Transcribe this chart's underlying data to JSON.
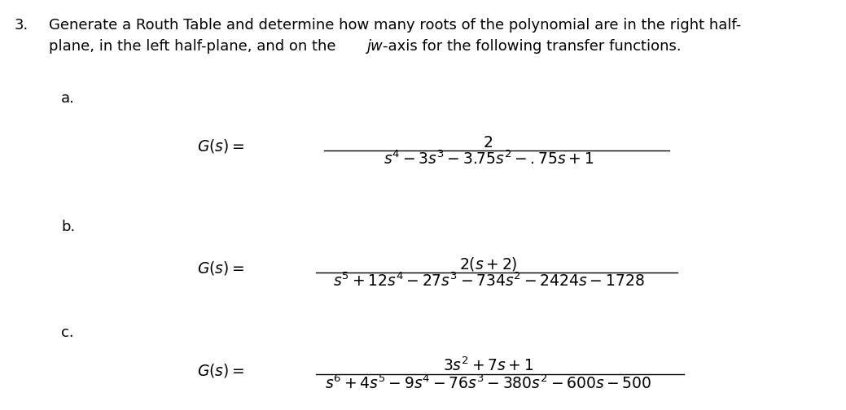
{
  "background_color": "#ffffff",
  "fig_width": 10.39,
  "fig_height": 5.04,
  "dpi": 100,
  "text_color": "#000000",
  "header_fontsize": 13.0,
  "label_fontsize": 13.0,
  "eq_fontsize": 13.5,
  "header_number": "3.",
  "header_line1": "Generate a Routh Table and determine how many roots of the polynomial are in the right half-",
  "header_line2_pre": "plane, in the left half-plane, and on the ",
  "header_line2_italic": "jw",
  "header_line2_post": "-axis for the following transfer functions.",
  "label_a": "a.",
  "label_b": "b.",
  "label_c": "c.",
  "a_num": "2",
  "a_den": "$s^4 - 3s^3 - 3.75s^2 - .75s + 1$",
  "b_num": "$2(s + 2)$",
  "b_den": "$s^5 + 12s^4 - 27s^3 - 734s^2 - 2424s - 1728$",
  "c_num": "$3s^2 + 7s + 1$",
  "c_den": "$s^6 + 4s^5 - 9s^4 - 76s^3 - 380s^2 - 600s - 500$"
}
